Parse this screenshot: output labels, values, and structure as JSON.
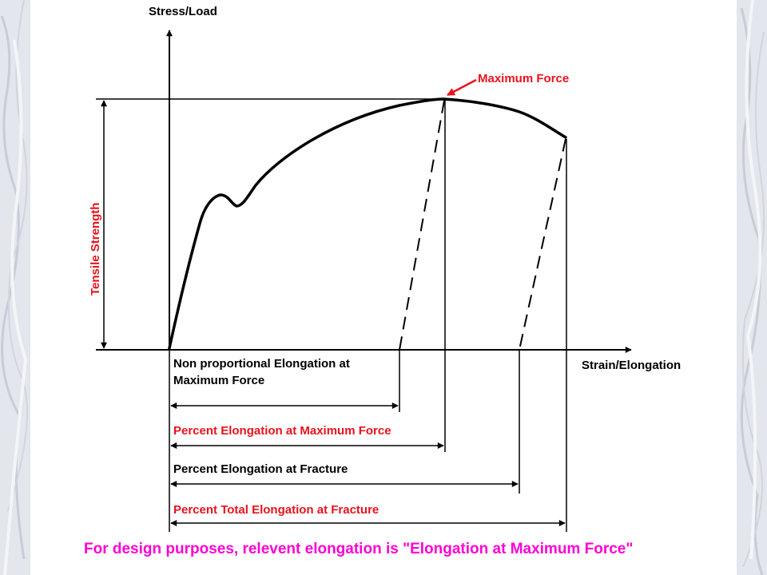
{
  "axes": {
    "y_label": "Stress/Load",
    "x_label": "Strain/Elongation"
  },
  "annotations": {
    "maximum_force": "Maximum Force",
    "tensile_strength": "Tensile Strength"
  },
  "measurements": [
    {
      "label_line1": "Non proportional Elongation at",
      "label_line2": "Maximum Force",
      "color": "#000000"
    },
    {
      "label_line1": "Percent Elongation at Maximum Force",
      "label_line2": "",
      "color": "#e8121c"
    },
    {
      "label_line1": "Percent Elongation at Fracture",
      "label_line2": "",
      "color": "#000000"
    },
    {
      "label_line1": "Percent Total Elongation at Fracture",
      "label_line2": "",
      "color": "#e8121c"
    }
  ],
  "footer_note": "For design purposes, relevent elongation is \"Elongation at Maximum Force\"",
  "colors": {
    "line": "#000000",
    "annotation_red": "#e8121c",
    "note_magenta": "#ff00d4",
    "marble": "#dde1e8"
  }
}
